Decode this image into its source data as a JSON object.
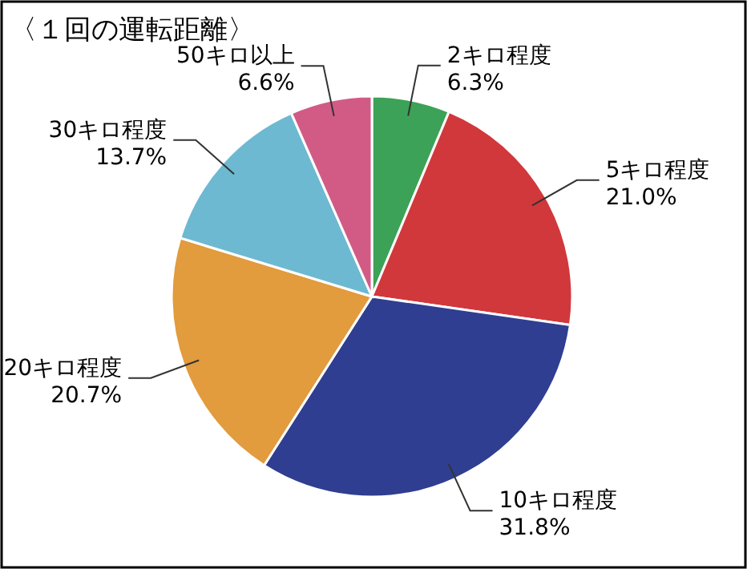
{
  "chart_data": {
    "type": "pie",
    "title": "〈１回の運転距離〉",
    "categories": [
      "2キロ程度",
      "5キロ程度",
      "10キロ程度",
      "20キロ程度",
      "30キロ程度",
      "50キロ以上"
    ],
    "values": [
      6.3,
      21.0,
      31.8,
      20.7,
      13.7,
      6.6
    ],
    "value_labels": [
      "6.3%",
      "21.0%",
      "31.8%",
      "20.7%",
      "13.7%",
      "6.6%"
    ],
    "colors": [
      "#3ca257",
      "#d1383b",
      "#2f3e90",
      "#e29b3d",
      "#6db9d1",
      "#d25b86"
    ]
  }
}
